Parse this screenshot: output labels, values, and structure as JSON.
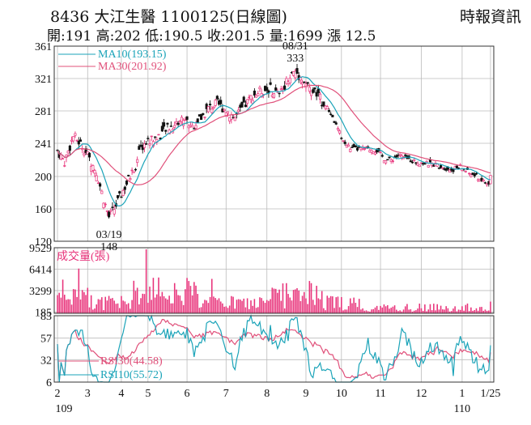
{
  "header": {
    "title": "8436 大江生醫 1100125(日線圖)",
    "source": "時報資訊",
    "quote": "開:191 高:202 低:190.5 收:201.5 量:1699 漲 12.5"
  },
  "colors": {
    "up": "#e8327a",
    "down": "#111111",
    "ma10": "#1aa3b8",
    "ma30": "#e0507a",
    "volume": "#e8327a",
    "rsi30": "#e0507a",
    "rsi10": "#1aa3b8",
    "grid": "#bbbbbb"
  },
  "chart_data": [
    {
      "type": "candlestick",
      "name": "price",
      "ylim": [
        120,
        361
      ],
      "y_ticks": [
        361,
        321,
        281,
        241,
        200,
        160,
        120
      ],
      "legend": [
        {
          "label": "MA10(193.15)",
          "key": "ma10"
        },
        {
          "label": "MA30(201.92)",
          "key": "ma30"
        }
      ],
      "annotations": [
        {
          "date": "08/31",
          "value": "333",
          "x_index": 134,
          "y": 333,
          "position": "above"
        },
        {
          "date": "03/19",
          "value": "148",
          "x_index": 29,
          "y": 148,
          "position": "below"
        }
      ],
      "last_close": 201.5,
      "last_ma10": 193.15,
      "last_ma30": 201.92
    },
    {
      "type": "bar",
      "name": "成交量(張)",
      "label": "成交量(張)",
      "ylim": [
        0,
        9529
      ],
      "y_ticks": [
        9529,
        6414,
        3299,
        185
      ],
      "last_value": 1699
    },
    {
      "type": "line",
      "name": "RSI",
      "ylim": [
        6,
        83
      ],
      "y_ticks": [
        83,
        57,
        32,
        6
      ],
      "series": [
        {
          "name": "RSI30(44.58)",
          "key": "rsi30",
          "last": 44.58
        },
        {
          "name": "RSI10(55.72)",
          "key": "rsi10",
          "last": 55.72
        }
      ]
    }
  ],
  "x_axis": {
    "months": [
      {
        "label": "2",
        "index": 0
      },
      {
        "label": "3",
        "index": 17
      },
      {
        "label": "4",
        "index": 36
      },
      {
        "label": "5",
        "index": 51
      },
      {
        "label": "6",
        "index": 73
      },
      {
        "label": "7",
        "index": 95
      },
      {
        "label": "8",
        "index": 118
      },
      {
        "label": "9",
        "index": 140
      },
      {
        "label": "10",
        "index": 160
      },
      {
        "label": "11",
        "index": 182
      },
      {
        "label": "12",
        "index": 205
      },
      {
        "label": "1",
        "index": 228
      },
      {
        "label": "1/25",
        "index": 244
      }
    ],
    "years": [
      {
        "label": "109",
        "index": 0
      },
      {
        "label": "110",
        "index": 228
      }
    ],
    "count": 245
  }
}
